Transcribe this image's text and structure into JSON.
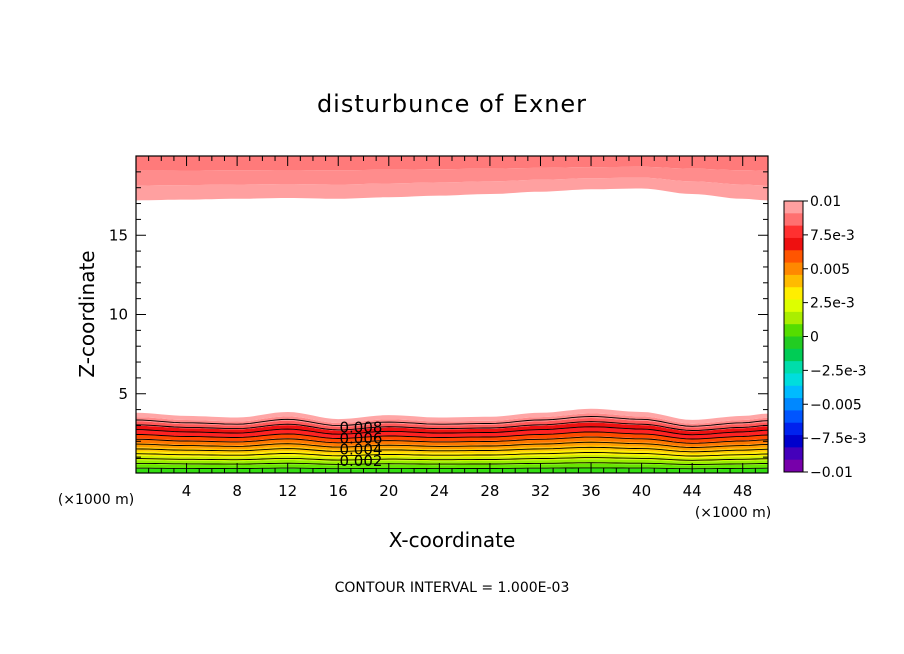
{
  "title": "disturbunce of Exner",
  "chart_data": {
    "type": "heatmap",
    "title": "disturbunce of Exner",
    "xlabel": "X-coordinate",
    "ylabel": "Z-coordinate",
    "x_unit": "(×1000 m)",
    "x_unit_right": "(×1000 m)",
    "xlim": [
      0,
      50
    ],
    "ylim": [
      0,
      20
    ],
    "xticks": [
      "4",
      "8",
      "12",
      "16",
      "20",
      "24",
      "28",
      "32",
      "36",
      "40",
      "44",
      "48"
    ],
    "yticks": [
      "5",
      "10",
      "15"
    ],
    "colorbar": {
      "range": [
        -0.01,
        0.01
      ],
      "labels": [
        "0.01",
        "7.5e-3",
        "0.005",
        "2.5e-3",
        "0",
        "−2.5e-3",
        "−0.005",
        "−7.5e-3",
        "−0.01"
      ],
      "colors": [
        "#ffa0a0",
        "#ff7070",
        "#ff3030",
        "#ee1010",
        "#ff5500",
        "#ff8800",
        "#ffbb00",
        "#ffee00",
        "#ddff00",
        "#aaee00",
        "#55dd00",
        "#22cc22",
        "#00cc55",
        "#00ddaa",
        "#00dddd",
        "#00bbff",
        "#0088ff",
        "#0055ff",
        "#0022ee",
        "#0000cc",
        "#4400bb",
        "#7700aa"
      ]
    },
    "contour_labels": [
      "0.008",
      "0.006",
      "0.004",
      "0.002"
    ],
    "footer": "CONTOUR INTERVAL = 1.000E-03",
    "lower_layer": {
      "x": [
        0,
        4,
        8,
        12,
        16,
        20,
        24,
        28,
        32,
        36,
        40,
        44,
        48,
        50
      ],
      "top_height": [
        3.8,
        3.6,
        3.5,
        3.85,
        3.4,
        3.65,
        3.5,
        3.55,
        3.8,
        4.05,
        3.85,
        3.35,
        3.6,
        3.75
      ]
    },
    "upper_layer": {
      "x": [
        0,
        4,
        8,
        12,
        16,
        20,
        24,
        28,
        32,
        36,
        40,
        44,
        48,
        50
      ],
      "bottom_height": [
        17.2,
        17.25,
        17.3,
        17.35,
        17.3,
        17.4,
        17.5,
        17.6,
        17.75,
        17.9,
        17.95,
        17.6,
        17.3,
        17.2
      ]
    }
  }
}
